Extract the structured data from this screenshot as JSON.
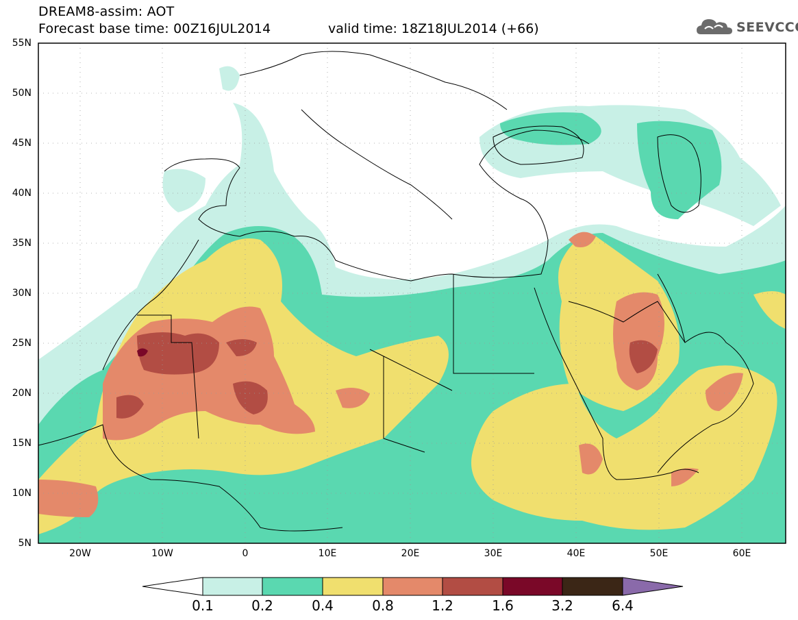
{
  "header": {
    "model_line": "DREAM8-assim: AOT",
    "base_time_line": "Forecast base time: 00Z16JUL2014",
    "valid_time_line": "valid time: 18Z18JUL2014 (+66)",
    "logo_text": "SEEVCCC"
  },
  "map": {
    "lat_labels": [
      "55N",
      "50N",
      "45N",
      "40N",
      "35N",
      "30N",
      "25N",
      "20N",
      "15N",
      "10N",
      "5N"
    ],
    "lon_labels": [
      "20W",
      "10W",
      "0",
      "10E",
      "20E",
      "30E",
      "40E",
      "50E",
      "60E"
    ],
    "lat_range": [
      5,
      55
    ],
    "lon_range": [
      -25,
      65
    ],
    "grid": "dotted",
    "field": "AOT (aerosol optical thickness)"
  },
  "colorbar": {
    "labels": [
      "0.1",
      "0.2",
      "0.4",
      "0.8",
      "1.2",
      "1.6",
      "3.2",
      "6.4"
    ],
    "colors": [
      "#c8f0e6",
      "#5ad8b0",
      "#f0df6e",
      "#e4896a",
      "#b24d44",
      "#7a0828",
      "#3b2616",
      "#8a6aaa"
    ]
  }
}
